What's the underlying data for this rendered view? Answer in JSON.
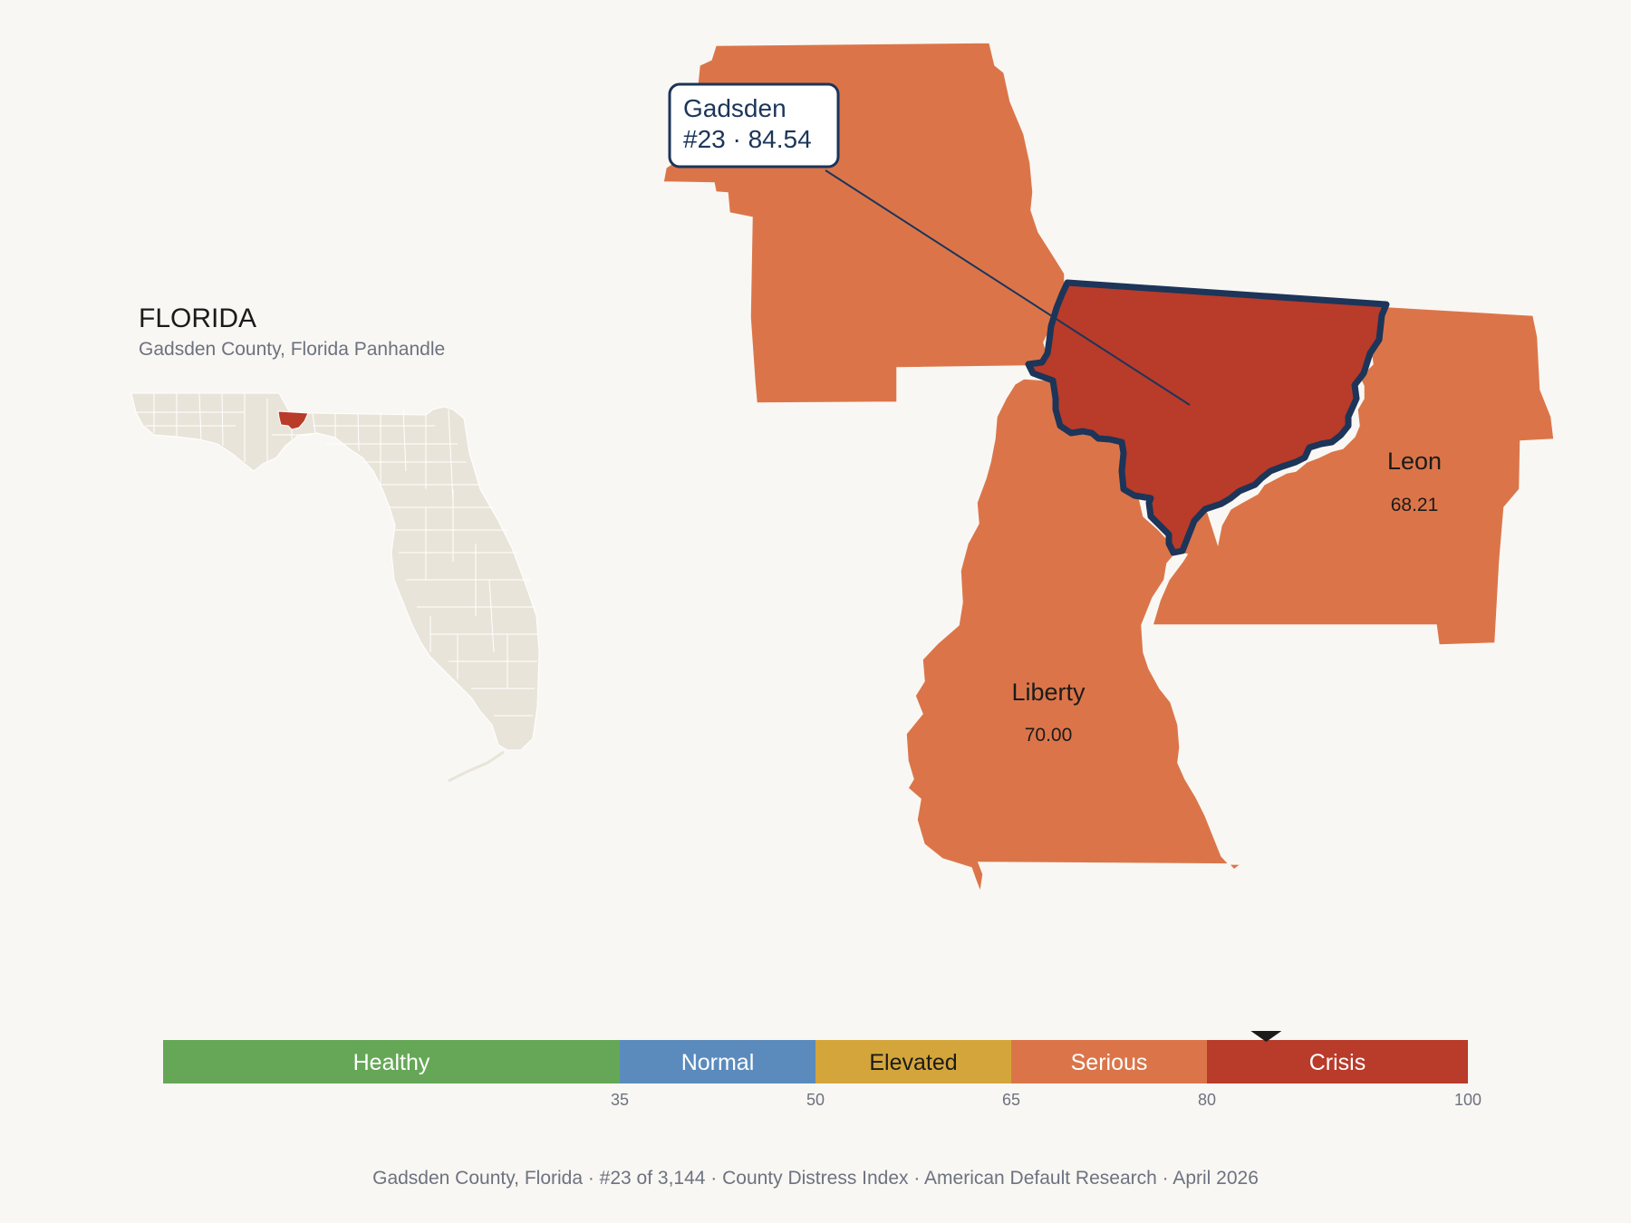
{
  "state": {
    "title": "FLORIDA",
    "subtitle": "Gadsden County, Florida Panhandle"
  },
  "focus": {
    "name": "Gadsden",
    "rank_score": "#23 · 84.54",
    "rank": 23,
    "score": 84.54
  },
  "neighbors": [
    {
      "name": "Leon",
      "value": "68.21"
    },
    {
      "name": "Liberty",
      "value": "70.00"
    }
  ],
  "legend": {
    "bands": [
      {
        "label": "Healthy",
        "from": 0,
        "to": 35,
        "color": "#66a757"
      },
      {
        "label": "Normal",
        "from": 35,
        "to": 50,
        "color": "#5b8bbd"
      },
      {
        "label": "Elevated",
        "from": 50,
        "to": 65,
        "color": "#d4a53a"
      },
      {
        "label": "Serious",
        "from": 65,
        "to": 80,
        "color": "#db7549"
      },
      {
        "label": "Crisis",
        "from": 80,
        "to": 100,
        "color": "#b93b2a"
      }
    ],
    "ticks": [
      "35",
      "50",
      "65",
      "80",
      "100"
    ],
    "marker_value": 84.54
  },
  "footer": "Gadsden County, Florida  ·  #23 of 3,144  ·  County Distress Index  ·  American Default Research  ·  April 2026",
  "colors": {
    "background": "#f9f7f3",
    "serious": "#db7549",
    "crisis": "#b93b2a",
    "outline": "#1c3559",
    "state_fill": "#e9e4d9"
  }
}
